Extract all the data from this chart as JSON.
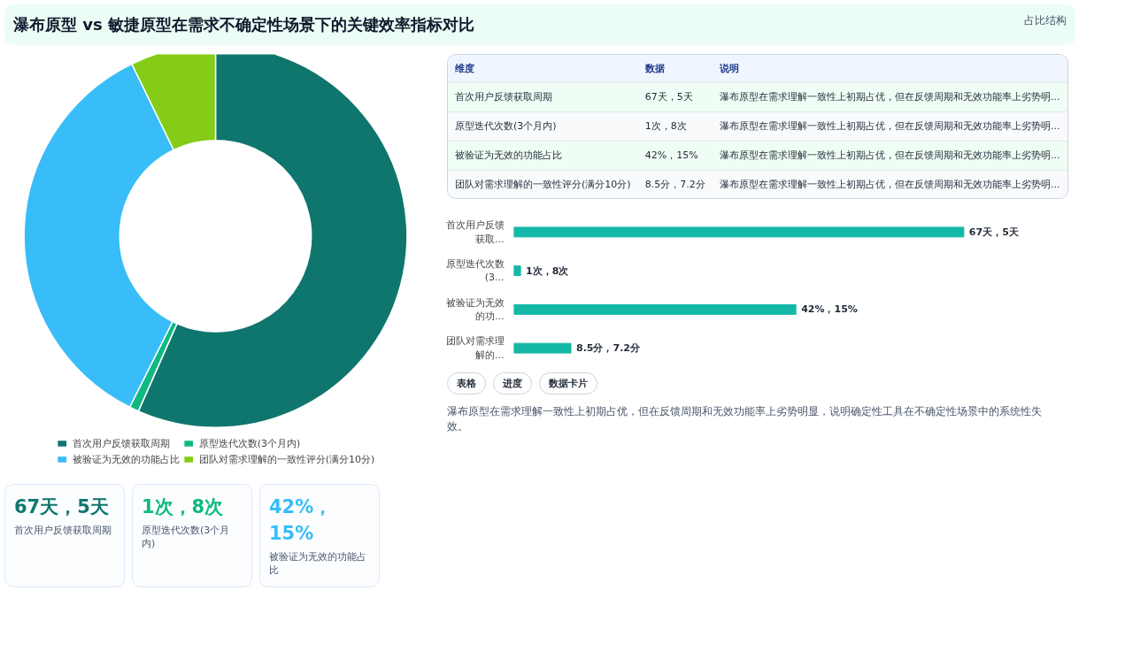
{
  "chart_data": [
    {
      "type": "other",
      "title": "瀑布原型 vs 敏捷原型在需求不确定性场景下的关键效率指标对比",
      "subtitle": "占比结构"
    },
    {
      "type": "donut",
      "categories": [
        "首次用户反馈获取周期",
        "原型迭代次数(3个月内)",
        "被验证为无效的功能占比",
        "团队对需求理解的一致性评分(满分10分)"
      ],
      "values": [
        56.6,
        0.8,
        35.4,
        7.2
      ],
      "colors": [
        "#0f766e",
        "#10b981",
        "#38bdf8",
        "#84cc16"
      ],
      "legend": "bottom"
    },
    {
      "type": "other",
      "categories": [
        "维度",
        "数据",
        "说明"
      ],
      "annotations": [
        "首次用户反馈获取周期",
        "67天，5天",
        "瀑布原型在需求理解一致性上初期占优，但在反馈周期和无效功能率上劣势明...",
        "原型迭代次数(3个月内)",
        "1次，8次",
        "瀑布原型在需求理解一致性上初期占优，但在反馈周期和无效功能率上劣势明...",
        "被验证为无效的功能占比",
        "42%，15%",
        "瀑布原型在需求理解一致性上初期占优，但在反馈周期和无效功能率上劣势明...",
        "团队对需求理解的一致性评分(满分10分)",
        "8.5分，7.2分",
        "瀑布原型在需求理解一致性上初期占优，但在反馈周期和无效功能率上劣势明..."
      ]
    },
    {
      "type": "bar",
      "orientation": "horizontal",
      "categories": [
        "首次用户反馈获取...",
        "原型迭代次数(3...",
        "被验证为无效的功...",
        "团队对需求理解的..."
      ],
      "values": [
        67,
        1,
        42,
        8.5
      ],
      "tick_labels": false,
      "color": "#14b8a6",
      "value_labels": [
        "67天，5天",
        "1次，8次",
        "42%，15%",
        "8.5分，7.2分"
      ]
    },
    {
      "type": "other",
      "annotations": [
        "67天，5天",
        "首次用户反馈获取周期",
        "1次，8次",
        "原型迭代次数(3个月内)",
        "42%，15%",
        "被验证为无效的功能占比"
      ]
    },
    {
      "type": "other",
      "annotations": [
        "表格",
        "进度",
        "数据卡片",
        "瀑布原型在需求理解一致性上初期占优，但在反馈周期和无效功能率上劣势明显，说明确定性工具在不确定性场景中的系统性失效。"
      ]
    }
  ]
}
